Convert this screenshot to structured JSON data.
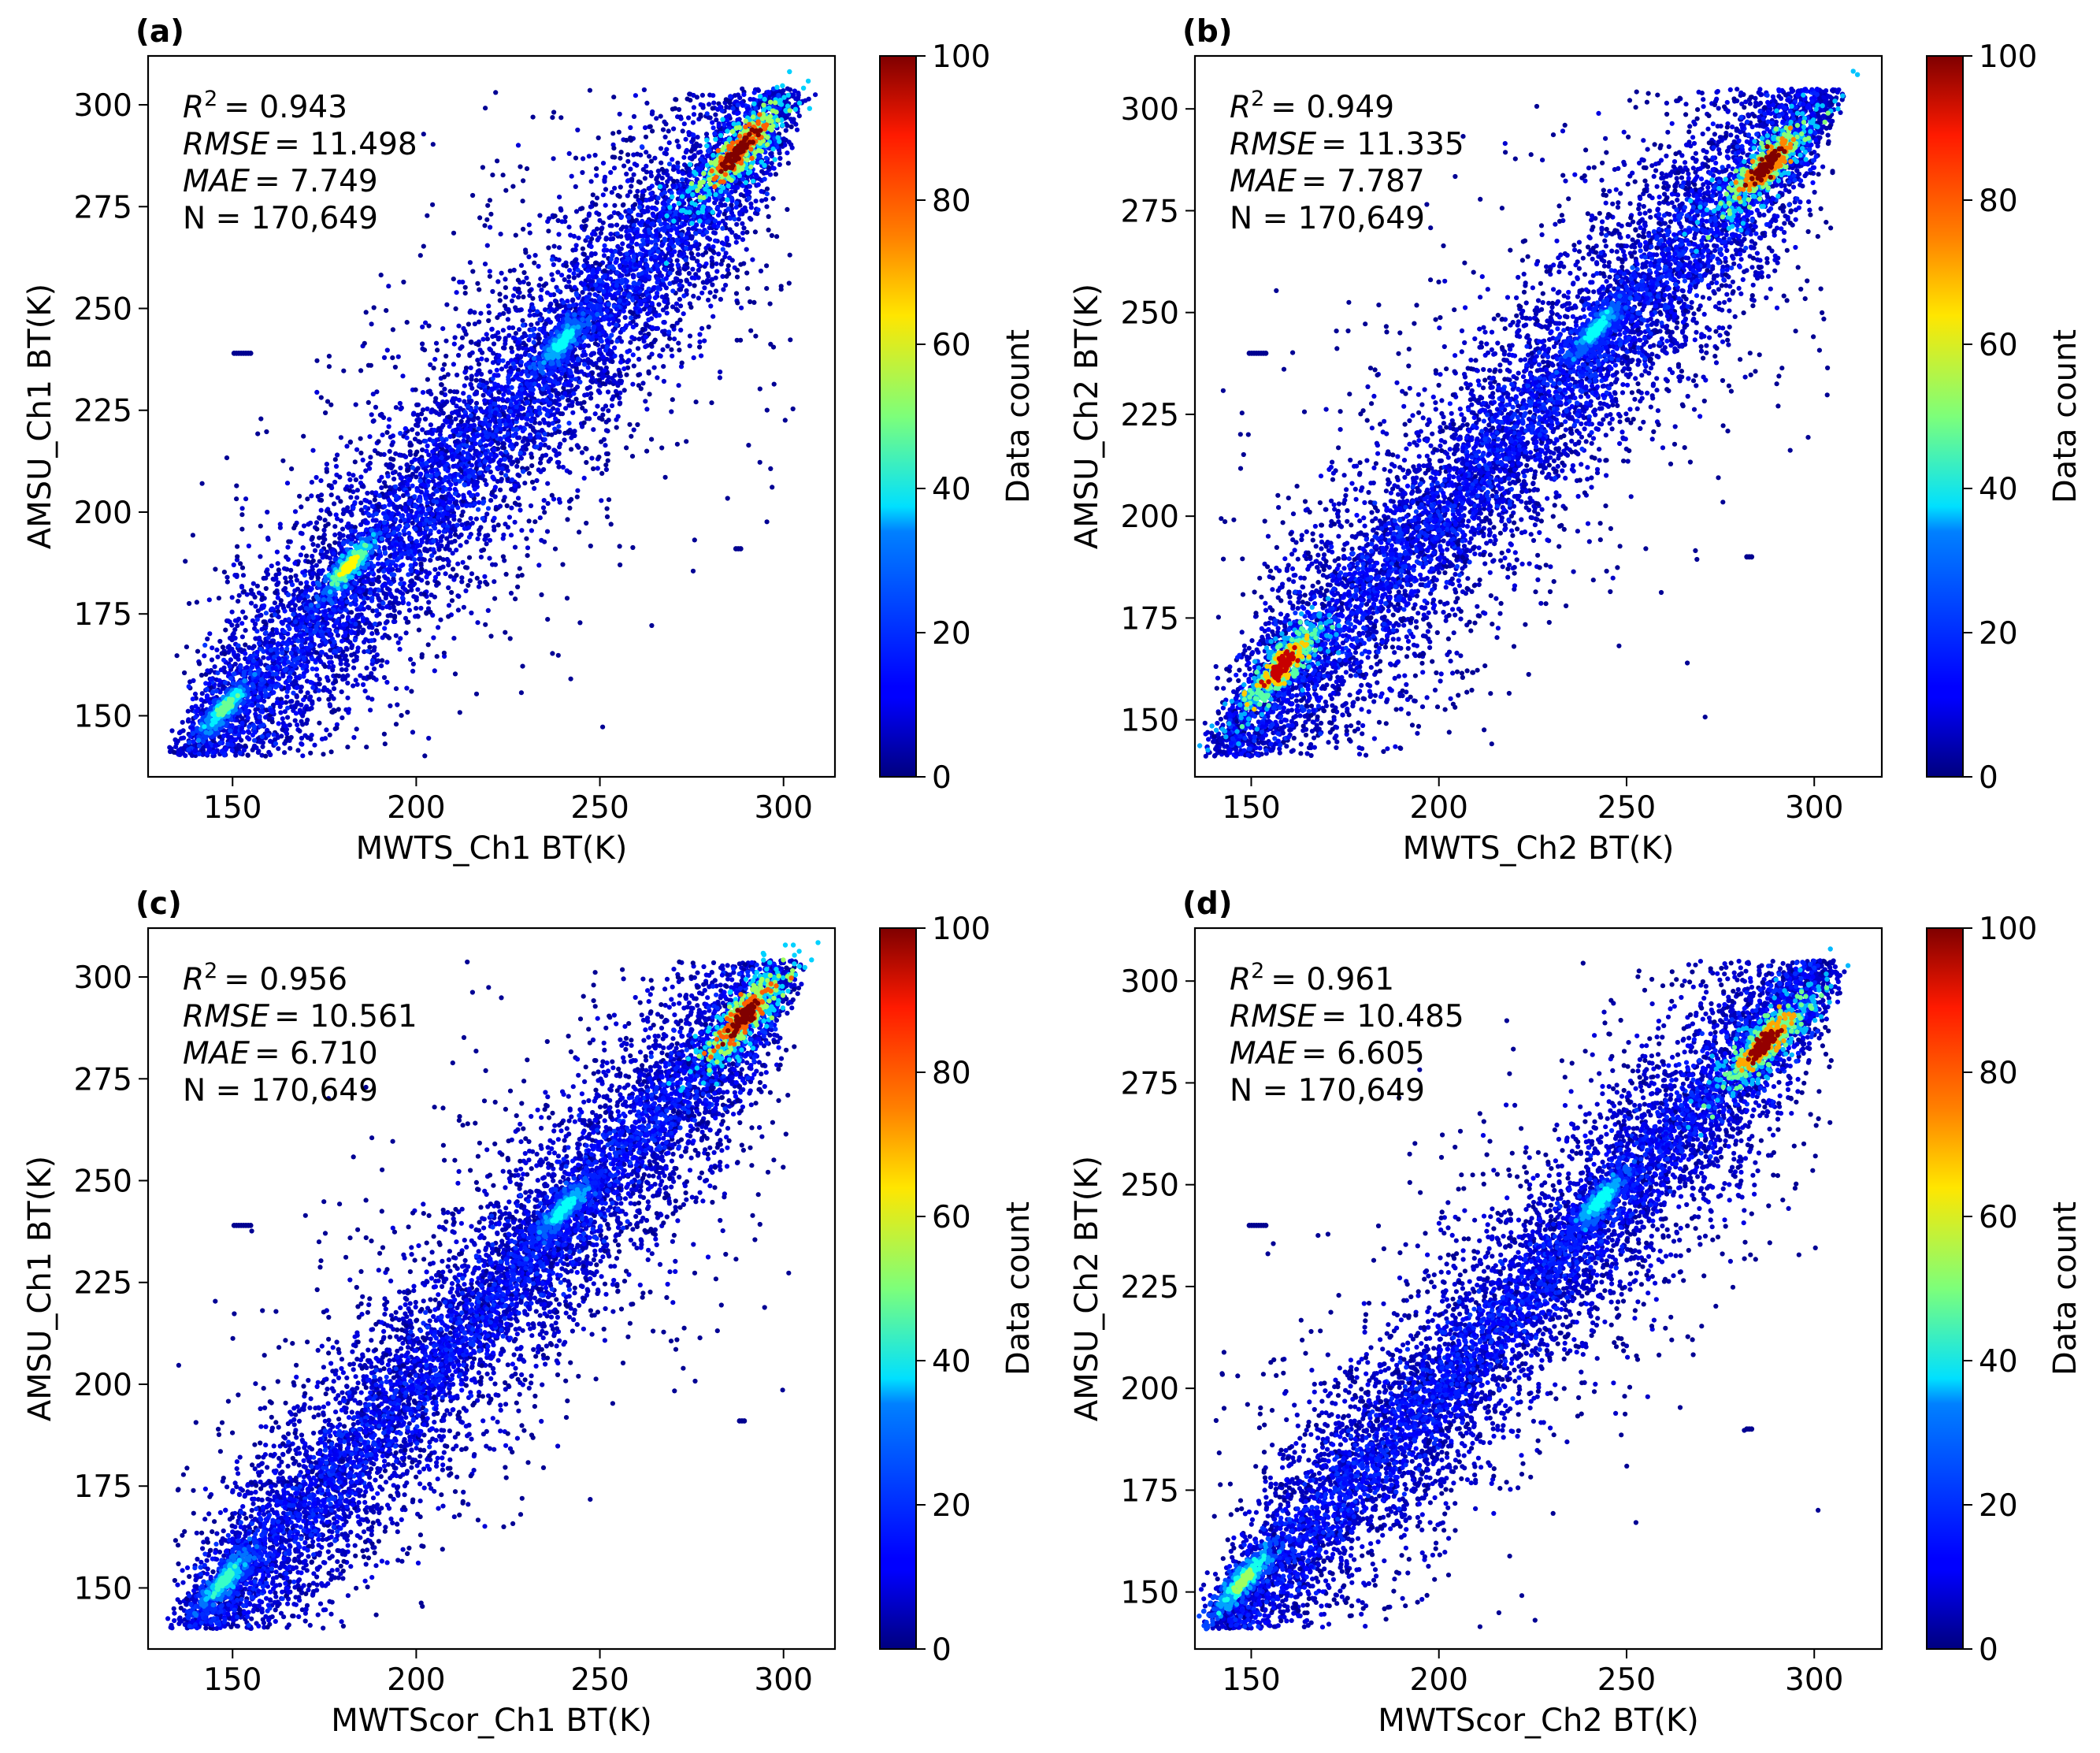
{
  "chart_data": [
    {
      "panel_label": "(a)",
      "type": "scatter",
      "subtype": "density-scatter",
      "xlabel": "MWTS_Ch1 BT(K)",
      "ylabel": "AMSU_Ch1 BT(K)",
      "xlim": [
        127,
        314
      ],
      "ylim": [
        135,
        312
      ],
      "xticks": [
        150,
        200,
        250,
        300
      ],
      "yticks": [
        150,
        175,
        200,
        225,
        250,
        275,
        300
      ],
      "colorbar": {
        "label": "Data count",
        "range": [
          0,
          100
        ],
        "ticks": [
          0,
          20,
          40,
          60,
          80,
          100
        ],
        "colormap": "jet"
      },
      "stats": {
        "r2_label": "R",
        "r2_value": "= 0.943",
        "rmse_label": "RMSE",
        "rmse_value": "= 11.498",
        "mae_label": "MAE",
        "mae_value": "= 7.749",
        "n_text": "N = 170,649"
      },
      "fit": {
        "x_range": [
          134,
          303
        ],
        "slope": 1.0,
        "spread": 17
      },
      "hotspots": [
        {
          "x": 288,
          "y": 289,
          "count": 100,
          "extent": 10
        },
        {
          "x": 182,
          "y": 187,
          "count": 55,
          "extent": 5
        },
        {
          "x": 148,
          "y": 152,
          "count": 40,
          "extent": 5
        },
        {
          "x": 240,
          "y": 242,
          "count": 30,
          "extent": 6
        }
      ],
      "outliers": [
        {
          "x": 153,
          "y": 239,
          "count": 8
        },
        {
          "x": 288,
          "y": 191,
          "count": 3
        }
      ]
    },
    {
      "panel_label": "(b)",
      "type": "scatter",
      "subtype": "density-scatter",
      "xlabel": "MWTS_Ch2 BT(K)",
      "ylabel": "AMSU_Ch2 BT(K)",
      "xlim": [
        135,
        318
      ],
      "ylim": [
        136,
        313
      ],
      "xticks": [
        150,
        200,
        250,
        300
      ],
      "yticks": [
        150,
        175,
        200,
        225,
        250,
        275,
        300
      ],
      "colorbar": {
        "label": "Data count",
        "range": [
          0,
          100
        ],
        "ticks": [
          0,
          20,
          40,
          60,
          80,
          100
        ],
        "colormap": "jet"
      },
      "stats": {
        "r2_label": "R",
        "r2_value": "= 0.949",
        "rmse_label": "RMSE",
        "rmse_value": "= 11.335",
        "mae_label": "MAE",
        "mae_value": "= 7.787",
        "n_text": "N = 170,649"
      },
      "fit": {
        "x_range": [
          140,
          305
        ],
        "slope": 1.0,
        "spread": 17
      },
      "hotspots": [
        {
          "x": 287,
          "y": 286,
          "count": 95,
          "extent": 10
        },
        {
          "x": 158,
          "y": 163,
          "count": 85,
          "extent": 9
        },
        {
          "x": 242,
          "y": 246,
          "count": 30,
          "extent": 6
        }
      ],
      "outliers": [
        {
          "x": 152,
          "y": 240,
          "count": 8
        },
        {
          "x": 283,
          "y": 190,
          "count": 3
        }
      ]
    },
    {
      "panel_label": "(c)",
      "type": "scatter",
      "subtype": "density-scatter",
      "xlabel": "MWTScor_Ch1 BT(K)",
      "ylabel": "AMSU_Ch1 BT(K)",
      "xlim": [
        127,
        314
      ],
      "ylim": [
        135,
        312
      ],
      "xticks": [
        150,
        200,
        250,
        300
      ],
      "yticks": [
        150,
        175,
        200,
        225,
        250,
        275,
        300
      ],
      "colorbar": {
        "label": "Data count",
        "range": [
          0,
          100
        ],
        "ticks": [
          0,
          20,
          40,
          60,
          80,
          100
        ],
        "colormap": "jet"
      },
      "stats": {
        "r2_label": "R",
        "r2_value": "= 0.956",
        "rmse_label": "RMSE",
        "rmse_value": "= 10.561",
        "mae_label": "MAE",
        "mae_value": "= 6.710",
        "n_text": "N = 170,649"
      },
      "fit": {
        "x_range": [
          134,
          303
        ],
        "slope": 1.0,
        "spread": 15
      },
      "hotspots": [
        {
          "x": 289,
          "y": 290,
          "count": 100,
          "extent": 10
        },
        {
          "x": 148,
          "y": 152,
          "count": 35,
          "extent": 6
        },
        {
          "x": 240,
          "y": 243,
          "count": 30,
          "extent": 6
        }
      ],
      "outliers": [
        {
          "x": 153,
          "y": 239,
          "count": 8
        },
        {
          "x": 289,
          "y": 191,
          "count": 3
        }
      ]
    },
    {
      "panel_label": "(d)",
      "type": "scatter",
      "subtype": "density-scatter",
      "xlabel": "MWTScor_Ch2 BT(K)",
      "ylabel": "AMSU_Ch2 BT(K)",
      "xlim": [
        135,
        318
      ],
      "ylim": [
        136,
        313
      ],
      "xticks": [
        150,
        200,
        250,
        300
      ],
      "yticks": [
        150,
        175,
        200,
        225,
        250,
        275,
        300
      ],
      "colorbar": {
        "label": "Data count",
        "range": [
          0,
          100
        ],
        "ticks": [
          0,
          20,
          40,
          60,
          80,
          100
        ],
        "colormap": "jet"
      },
      "stats": {
        "r2_label": "R",
        "r2_value": "= 0.961",
        "rmse_label": "RMSE",
        "rmse_value": "= 10.485",
        "mae_label": "MAE",
        "mae_value": "= 6.605",
        "n_text": "N = 170,649"
      },
      "fit": {
        "x_range": [
          140,
          305
        ],
        "slope": 1.0,
        "spread": 15
      },
      "hotspots": [
        {
          "x": 287,
          "y": 285,
          "count": 90,
          "extent": 10
        },
        {
          "x": 148,
          "y": 153,
          "count": 45,
          "extent": 6
        },
        {
          "x": 243,
          "y": 246,
          "count": 30,
          "extent": 6
        }
      ],
      "outliers": [
        {
          "x": 152,
          "y": 240,
          "count": 8
        },
        {
          "x": 283,
          "y": 190,
          "count": 3
        }
      ]
    }
  ]
}
